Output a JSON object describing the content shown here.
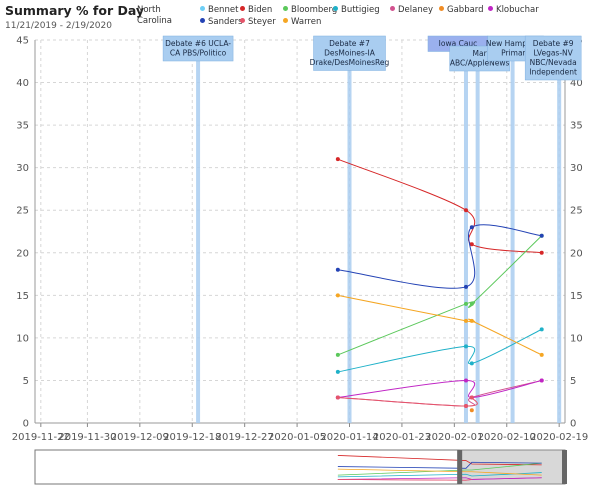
{
  "header": {
    "title": "Summary % for Day",
    "date_range": "11/21/2019 - 2/19/2020",
    "state": "North Carolina"
  },
  "chart_data": {
    "type": "line",
    "title": "Summary % for Day",
    "xlabel": "",
    "ylabel": "",
    "ylim": [
      0,
      45
    ],
    "xlim": [
      "2019-11-21",
      "2020-02-20"
    ],
    "y_ticks": [
      0,
      5,
      10,
      15,
      20,
      25,
      30,
      35,
      40,
      45
    ],
    "x_ticks": [
      "2019-11-22",
      "2019-11-30",
      "2019-12-09",
      "2019-12-18",
      "2019-12-27",
      "2020-01-05",
      "2020-01-14",
      "2020-01-23",
      "2020-02-01",
      "2020-02-10",
      "2020-02-19"
    ],
    "grid": true,
    "legend_placement": "top",
    "series": [
      {
        "name": "Bennet",
        "color": "#6ecff6",
        "points": []
      },
      {
        "name": "Biden",
        "color": "#d62728",
        "points": [
          [
            "2020-01-12",
            31
          ],
          [
            "2020-02-03",
            25
          ],
          [
            "2020-02-04",
            21
          ],
          [
            "2020-02-16",
            20
          ]
        ]
      },
      {
        "name": "Bloomberg",
        "color": "#5bc85b",
        "points": [
          [
            "2020-01-12",
            8
          ],
          [
            "2020-02-03",
            14
          ],
          [
            "2020-02-04",
            14
          ],
          [
            "2020-02-16",
            22
          ]
        ]
      },
      {
        "name": "Buttigieg",
        "color": "#1fb1c8",
        "points": [
          [
            "2020-01-12",
            6
          ],
          [
            "2020-02-03",
            9
          ],
          [
            "2020-02-04",
            7
          ],
          [
            "2020-02-16",
            11
          ]
        ]
      },
      {
        "name": "Delaney",
        "color": "#d2528f",
        "points": [
          [
            "2020-01-12",
            3
          ],
          [
            "2020-02-03",
            2
          ],
          [
            "2020-02-04",
            3
          ],
          [
            "2020-02-16",
            5
          ]
        ]
      },
      {
        "name": "Gabbard",
        "color": "#f08c24",
        "points": [
          [
            "2020-02-04",
            1.5
          ]
        ]
      },
      {
        "name": "Klobuchar",
        "color": "#c025c5",
        "points": [
          [
            "2020-01-12",
            3
          ],
          [
            "2020-02-03",
            5
          ],
          [
            "2020-02-04",
            3
          ],
          [
            "2020-02-16",
            5
          ]
        ]
      },
      {
        "name": "Sanders",
        "color": "#2443b5",
        "points": [
          [
            "2020-01-12",
            18
          ],
          [
            "2020-02-03",
            16
          ],
          [
            "2020-02-04",
            23
          ],
          [
            "2020-02-16",
            22
          ]
        ]
      },
      {
        "name": "Steyer",
        "color": "#e5556a",
        "points": [
          [
            "2020-01-12",
            3
          ],
          [
            "2020-02-03",
            2
          ],
          [
            "2020-02-04",
            3
          ]
        ]
      },
      {
        "name": "Warren",
        "color": "#f5a623",
        "points": [
          [
            "2020-01-12",
            15
          ],
          [
            "2020-02-03",
            12
          ],
          [
            "2020-02-04",
            12
          ],
          [
            "2020-02-16",
            8
          ]
        ]
      }
    ],
    "events": [
      {
        "date": "2019-12-19",
        "lines": [
          "Debate #6 UCLA-",
          "CA PBS/Politico"
        ]
      },
      {
        "date": "2020-01-14",
        "lines": [
          "Debate #7",
          "DesMoines-IA",
          "Drake/DesMoinesReg"
        ]
      },
      {
        "date": "2020-02-03",
        "lines": [
          "Iowa Cauc"
        ]
      },
      {
        "date": "2020-02-05",
        "lines": [
          "Mar",
          "ABC/AppleNews"
        ]
      },
      {
        "date": "2020-02-11",
        "lines": [
          "New Hampshire",
          "Primary"
        ]
      },
      {
        "date": "2020-02-19",
        "lines": [
          "Debate #9",
          "LVegas-NV",
          "NBC/Nevada",
          "Independent"
        ]
      }
    ],
    "brush": {
      "start": "2020-02-02",
      "end": "2020-02-20"
    }
  }
}
